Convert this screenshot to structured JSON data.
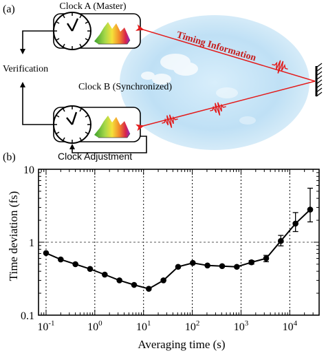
{
  "panel_a": {
    "label": "(a)",
    "clock_a_label": "Clock A (Master)",
    "clock_b_label": "Clock B (Synchronized)",
    "verification_label": "Verification",
    "adjustment_label": "Clock Adjustment",
    "timing_label": "Timing Information",
    "colors": {
      "beam": "#e31b1b",
      "timing_text": "#c41e1e",
      "sky": "#bfe0f5"
    },
    "icons": [
      "clock-icon",
      "spectrum-icon",
      "mirror-icon",
      "pulse-icon"
    ]
  },
  "panel_b": {
    "label": "(b)"
  },
  "chart_data": {
    "type": "line",
    "xlabel": "Averaging time (s)",
    "ylabel": "Time deviation (fs)",
    "xscale": "log",
    "yscale": "log",
    "xlim": [
      0.07,
      40000
    ],
    "ylim": [
      0.1,
      10
    ],
    "x_ticks": [
      {
        "value": 0.1,
        "base": "10",
        "exp": "-1"
      },
      {
        "value": 1,
        "base": "10",
        "exp": "0"
      },
      {
        "value": 10,
        "base": "10",
        "exp": "1"
      },
      {
        "value": 100,
        "base": "10",
        "exp": "2"
      },
      {
        "value": 1000,
        "base": "10",
        "exp": "3"
      },
      {
        "value": 10000,
        "base": "10",
        "exp": "4"
      }
    ],
    "y_ticks": [
      {
        "value": 0.1,
        "label": "0.1"
      },
      {
        "value": 1,
        "label": "1"
      },
      {
        "value": 10,
        "label": "10"
      }
    ],
    "vertical_gridlines": [
      0.1,
      1,
      10,
      100,
      1000,
      10000
    ],
    "reference_line_y": 1,
    "series": [
      {
        "x": [
          0.1,
          0.2,
          0.4,
          0.8,
          1.6,
          3.2,
          6.4,
          12.8,
          25.6,
          51.2,
          102.4,
          204.8,
          409.6,
          819.2,
          1638.4,
          3276.8,
          6553.6,
          13107.2,
          26214.4
        ],
        "y": [
          0.71,
          0.58,
          0.5,
          0.43,
          0.36,
          0.3,
          0.26,
          0.23,
          0.3,
          0.46,
          0.52,
          0.48,
          0.47,
          0.46,
          0.53,
          0.6,
          1.04,
          1.8,
          2.8
        ],
        "err_lo": [
          0,
          0,
          0,
          0,
          0,
          0,
          0,
          0,
          0,
          0,
          0,
          0,
          0,
          0,
          0.03,
          0.06,
          0.15,
          0.4,
          0.9
        ],
        "err_hi": [
          0,
          0,
          0,
          0,
          0,
          0,
          0,
          0,
          0,
          0,
          0,
          0,
          0,
          0,
          0.03,
          0.06,
          0.2,
          0.75,
          2.7
        ]
      }
    ]
  }
}
